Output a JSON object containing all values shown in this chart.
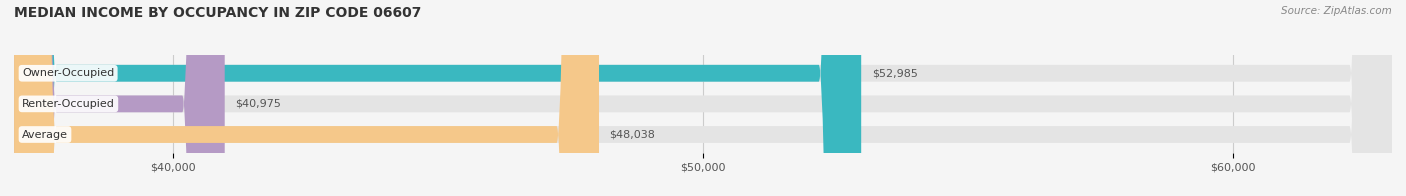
{
  "title": "MEDIAN INCOME BY OCCUPANCY IN ZIP CODE 06607",
  "source": "Source: ZipAtlas.com",
  "categories": [
    "Owner-Occupied",
    "Renter-Occupied",
    "Average"
  ],
  "values": [
    52985,
    40975,
    48038
  ],
  "bar_colors": [
    "#3ab8c0",
    "#b59ac5",
    "#f5c88a"
  ],
  "bar_labels": [
    "$52,985",
    "$40,975",
    "$48,038"
  ],
  "xmin": 37000,
  "xmax": 63000,
  "xticks": [
    40000,
    50000,
    60000
  ],
  "xtick_labels": [
    "$40,000",
    "$50,000",
    "$60,000"
  ],
  "title_fontsize": 10,
  "source_fontsize": 7.5,
  "label_fontsize": 8,
  "tick_fontsize": 8,
  "bar_height": 0.55,
  "bg_color": "#f5f5f5",
  "bar_bg_color": "#e4e4e4"
}
